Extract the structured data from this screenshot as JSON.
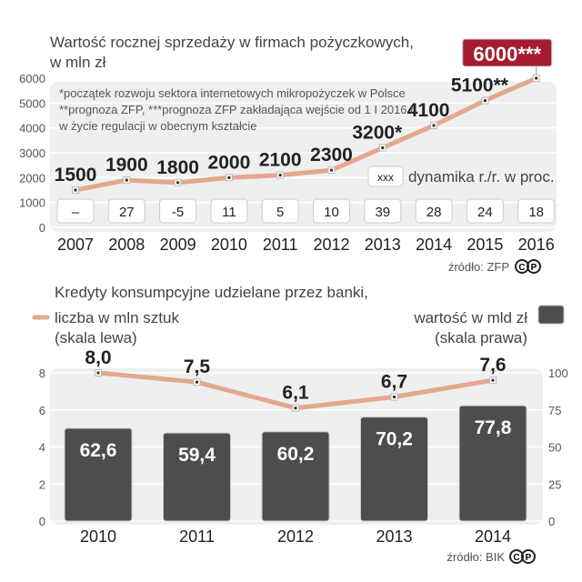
{
  "chart_data": [
    {
      "type": "line",
      "title": "Wartość rocznej sprzedaży w firmach pożyczkowych,",
      "subtitle": "w mln zł",
      "categories": [
        "2007",
        "2008",
        "2009",
        "2010",
        "2011",
        "2012",
        "2013",
        "2014",
        "2015",
        "2016"
      ],
      "values": [
        1500,
        1900,
        1800,
        2000,
        2100,
        2300,
        3200,
        4100,
        5100,
        6000
      ],
      "value_labels": [
        "1500",
        "1900",
        "1800",
        "2000",
        "2100",
        "2300",
        "3200*",
        "4100",
        "5100**",
        "6000***"
      ],
      "dynamics": [
        "–",
        "27",
        "-5",
        "11",
        "5",
        "10",
        "39",
        "28",
        "24",
        "18"
      ],
      "dynamics_legend_box": "xxx",
      "dynamics_legend": "dynamika r./r. w proc.",
      "notes": [
        "*początek rozwoju sektora internetowych mikropożyczek w Polsce",
        "**prognoza ZFP, ***prognoza ZFP zakładająca wejście od 1 I 2016 r.",
        "w życie regulacji w obecnym kształcie"
      ],
      "yticks": [
        "0",
        "1000",
        "2000",
        "3000",
        "4000",
        "5000",
        "6000"
      ],
      "ylim": [
        0,
        6000
      ],
      "source": "źródło: ZFP",
      "colors": {
        "line": "#e3a88e",
        "highlight": "#a51c30",
        "bg": "#efefef"
      }
    },
    {
      "type": "bar+line",
      "title": "Kredyty konsumpcyjne udzielane przez banki,",
      "categories": [
        "2010",
        "2011",
        "2012",
        "2013",
        "2014"
      ],
      "series": [
        {
          "name": "liczba w mln sztuk",
          "scale": "(skala lewa)",
          "type": "line",
          "values": [
            8.0,
            7.5,
            6.1,
            6.7,
            7.6
          ],
          "labels": [
            "8,0",
            "7,5",
            "6,1",
            "6,7",
            "7,6"
          ]
        },
        {
          "name": "wartość w mld zł",
          "scale": "(skala prawa)",
          "type": "bar",
          "values": [
            62.6,
            59.4,
            60.2,
            70.2,
            77.8
          ],
          "labels": [
            "62,6",
            "59,4",
            "60,2",
            "70,2",
            "77,8"
          ]
        }
      ],
      "yticks_left": [
        "0",
        "2",
        "4",
        "6",
        "8"
      ],
      "ylim_left": [
        0,
        8
      ],
      "yticks_right": [
        "0",
        "25",
        "50",
        "75",
        "100"
      ],
      "ylim_right": [
        0,
        100
      ],
      "source": "źródło: BIK",
      "colors": {
        "line": "#e3a88e",
        "bar": "#4d4d4f",
        "bg": "#efefef"
      }
    }
  ]
}
